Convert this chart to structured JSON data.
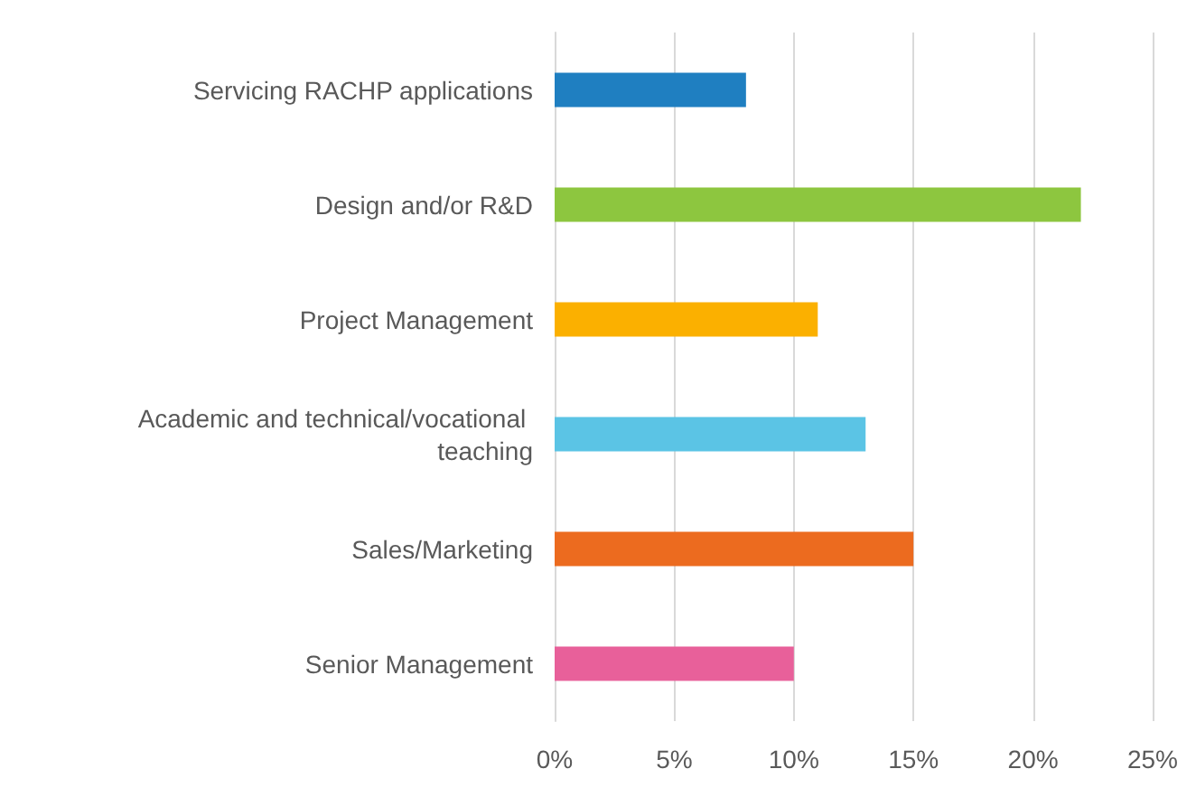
{
  "chart_data": {
    "type": "bar",
    "orientation": "horizontal",
    "categories": [
      "Servicing RACHP applications",
      "Design and/or R&D",
      "Project Management",
      "Academic and technical/vocational teaching",
      "Sales/Marketing",
      "Senior Management"
    ],
    "values": [
      8,
      22,
      11,
      13,
      15,
      10
    ],
    "colors": [
      "#1f7fc1",
      "#8dc63f",
      "#fbb000",
      "#5bc4e5",
      "#ec6b1f",
      "#e8609a"
    ],
    "xlim": [
      0,
      25
    ],
    "xticks": [
      {
        "value": 0,
        "label": "0%"
      },
      {
        "value": 5,
        "label": "5%"
      },
      {
        "value": 10,
        "label": "10%"
      },
      {
        "value": 15,
        "label": "15%"
      },
      {
        "value": 20,
        "label": "20%"
      },
      {
        "value": 25,
        "label": "25%"
      }
    ],
    "grid": "x"
  }
}
